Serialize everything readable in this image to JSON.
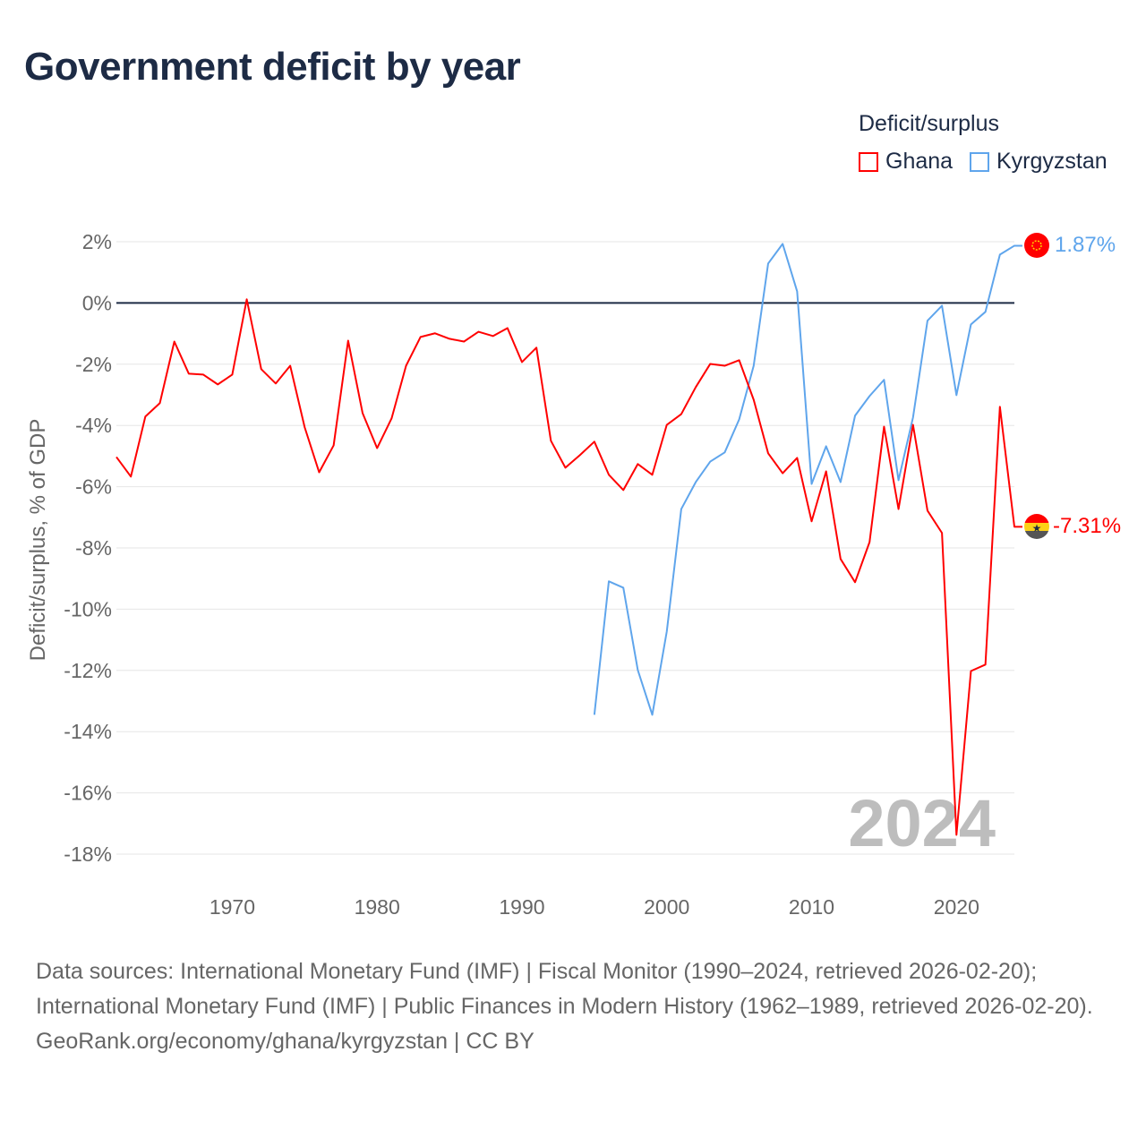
{
  "title": "Government deficit by year",
  "legend": {
    "title": "Deficit/surplus",
    "items": [
      {
        "name": "Ghana",
        "color": "#ff0000"
      },
      {
        "name": "Kyrgyzstan",
        "color": "#5fa5ec"
      }
    ]
  },
  "chart_data": {
    "type": "line",
    "title": "Government deficit by year",
    "ylabel": "Deficit/surplus, % of GDP",
    "xlabel": "",
    "ylim": [
      -18,
      2
    ],
    "xlim": [
      1962,
      2024
    ],
    "yticks": [
      2,
      0,
      -2,
      -4,
      -6,
      -8,
      -10,
      -12,
      -14,
      -16,
      -18
    ],
    "ytick_labels": [
      "2%",
      "0%",
      "-2%",
      "-4%",
      "-6%",
      "-8%",
      "-10%",
      "-12%",
      "-14%",
      "-16%",
      "-18%"
    ],
    "xticks": [
      1970,
      1980,
      1990,
      2000,
      2010,
      2020
    ],
    "xtick_labels": [
      "1970",
      "1980",
      "1990",
      "2000",
      "2010",
      "2020"
    ],
    "grid": true,
    "legend_position": "top-right",
    "watermark_year": "2024",
    "series": [
      {
        "name": "Ghana",
        "color": "#ff0000",
        "end_label": "-7.31%",
        "start_year": 1962,
        "values": [
          -5.03,
          -5.67,
          -3.71,
          -3.27,
          -1.26,
          -2.31,
          -2.34,
          -2.66,
          -2.34,
          0.12,
          -2.16,
          -2.63,
          -2.05,
          -4.06,
          -5.53,
          -4.65,
          -1.23,
          -3.6,
          -4.74,
          -3.77,
          -2.05,
          -1.11,
          -0.99,
          -1.17,
          -1.26,
          -0.94,
          -1.08,
          -0.82,
          -1.93,
          -1.46,
          -4.5,
          -5.38,
          -4.97,
          -4.53,
          -5.61,
          -6.11,
          -5.26,
          -5.61,
          -3.98,
          -3.63,
          -2.75,
          -1.99,
          -2.05,
          -1.87,
          -3.16,
          -4.91,
          -5.56,
          -5.06,
          -7.13,
          -5.5,
          -8.36,
          -9.12,
          -7.81,
          -4.04,
          -6.73,
          -3.98,
          -6.78,
          -7.51,
          -17.37,
          -12.02,
          -11.81,
          -3.39,
          -7.31
        ]
      },
      {
        "name": "Kyrgyzstan",
        "color": "#5fa5ec",
        "end_label": "1.87%",
        "start_year": 1995,
        "values": [
          -13.45,
          -9.09,
          -9.3,
          -11.99,
          -13.45,
          -10.73,
          -6.73,
          -5.85,
          -5.18,
          -4.88,
          -3.8,
          -2.05,
          1.29,
          1.93,
          0.38,
          -5.91,
          -4.68,
          -5.85,
          -3.68,
          -3.04,
          -2.51,
          -5.79,
          -3.74,
          -0.58,
          -0.09,
          -3.01,
          -0.7,
          -0.29,
          1.58,
          1.87
        ]
      }
    ]
  },
  "footer": {
    "sources": "Data sources: International Monetary Fund (IMF) | Fiscal Monitor (1990–2024, retrieved 2026-02-20); International Monetary Fund (IMF) | Public Finances in Modern History (1962–1989, retrieved 2026-02-20).",
    "credit": "GeoRank.org/economy/ghana/kyrgyzstan | CC BY"
  }
}
